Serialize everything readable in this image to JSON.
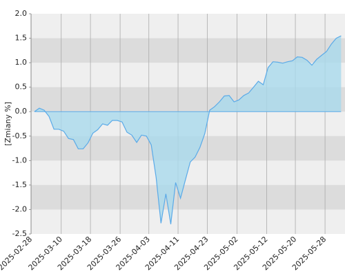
{
  "chart_data": {
    "type": "area",
    "ylabel": "[Zmiany %]",
    "x": [
      0,
      1,
      2,
      3,
      4,
      5,
      6,
      7,
      8,
      9,
      10,
      11,
      12,
      13,
      14,
      15,
      16,
      17,
      18,
      19,
      20,
      21,
      22,
      23,
      24,
      25,
      26,
      27,
      28,
      29,
      30,
      31,
      32,
      33,
      34,
      35,
      36,
      37,
      38,
      39,
      40,
      41,
      42,
      43,
      44,
      45,
      46,
      47,
      48,
      49,
      50,
      51,
      52,
      53,
      54,
      55,
      56,
      57,
      58,
      59,
      60,
      61,
      62,
      63
    ],
    "values": [
      0.0,
      0.07,
      0.03,
      -0.1,
      -0.36,
      -0.36,
      -0.4,
      -0.55,
      -0.57,
      -0.76,
      -0.76,
      -0.64,
      -0.44,
      -0.37,
      -0.25,
      -0.28,
      -0.18,
      -0.18,
      -0.21,
      -0.42,
      -0.48,
      -0.63,
      -0.48,
      -0.5,
      -0.68,
      -1.35,
      -2.28,
      -1.68,
      -2.3,
      -1.45,
      -1.77,
      -1.4,
      -1.03,
      -0.93,
      -0.73,
      -0.45,
      0.03,
      0.1,
      0.2,
      0.32,
      0.33,
      0.2,
      0.24,
      0.33,
      0.38,
      0.5,
      0.62,
      0.55,
      0.9,
      1.02,
      1.01,
      0.99,
      1.02,
      1.04,
      1.12,
      1.11,
      1.05,
      0.95,
      1.07,
      1.15,
      1.23,
      1.38,
      1.5,
      1.55
    ],
    "color": "#5aaae8",
    "fill": "#a9d9ec",
    "xlim": [
      -0.7,
      63.8
    ],
    "xticks": [
      {
        "value": -0.7,
        "label": "2025-02-28"
      },
      {
        "value": 5.5,
        "label": "2025-03-10"
      },
      {
        "value": 11.5,
        "label": "2025-03-18"
      },
      {
        "value": 17.6,
        "label": "2025-03-26"
      },
      {
        "value": 23.5,
        "label": "2025-04-03"
      },
      {
        "value": 29.5,
        "label": "2025-04-11"
      },
      {
        "value": 35.5,
        "label": "2025-04-23"
      },
      {
        "value": 41.6,
        "label": "2025-05-02"
      },
      {
        "value": 47.7,
        "label": "2025-05-12"
      },
      {
        "value": 53.6,
        "label": "2025-05-20"
      },
      {
        "value": 59.7,
        "label": "2025-05-28"
      }
    ],
    "ylim": [
      -2.5,
      2.0
    ],
    "yticks": [
      {
        "value": 2,
        "label": "2.0"
      },
      1.5,
      {
        "value": 1,
        "label": "1.0"
      },
      0.5,
      {
        "value": 0,
        "label": "0.0"
      },
      -0.5,
      {
        "value": -1,
        "label": "-1.0"
      },
      -1.5,
      {
        "value": -2,
        "label": "-2.0"
      },
      -2.5
    ],
    "grid": true,
    "bands": true
  }
}
